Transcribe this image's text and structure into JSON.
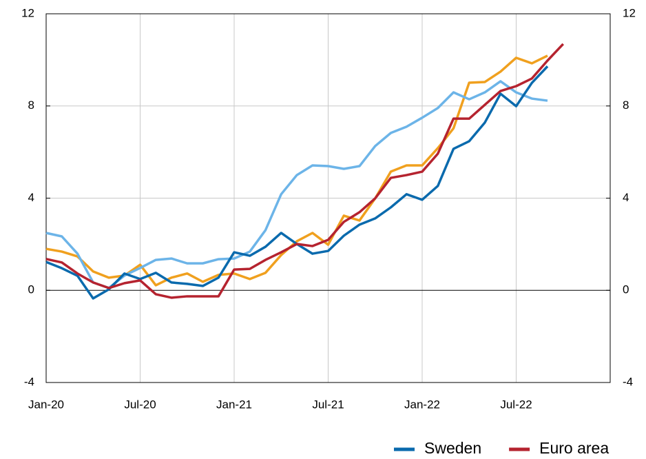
{
  "chart_data": {
    "type": "line",
    "categories": [
      "Jan-20",
      null,
      null,
      null,
      null,
      null,
      "Jul-20",
      null,
      null,
      null,
      null,
      null,
      "Jan-21",
      null,
      null,
      null,
      null,
      null,
      "Jul-21",
      null,
      null,
      null,
      null,
      null,
      "Jan-22",
      null,
      null,
      null,
      null,
      null,
      "Jul-22",
      null,
      null,
      null,
      null,
      null,
      null
    ],
    "series": [
      {
        "color": "#f0a01e",
        "values": [
          1.8,
          1.68,
          1.47,
          0.82,
          0.55,
          0.64,
          1.11,
          0.22,
          0.55,
          0.73,
          0.37,
          0.67,
          0.73,
          0.49,
          0.76,
          1.53,
          2.13,
          2.49,
          1.98,
          3.24,
          3.03,
          3.99,
          5.15,
          5.42,
          5.42,
          6.17,
          7.03,
          9.01,
          9.04,
          9.49,
          10.09,
          9.85,
          10.18,
          null,
          null,
          null,
          null
        ]
      },
      {
        "color": "#6cb4e8",
        "values": [
          2.49,
          2.34,
          1.59,
          0.34,
          0.1,
          0.64,
          0.97,
          1.32,
          1.38,
          1.17,
          1.17,
          1.35,
          1.38,
          1.68,
          2.61,
          4.17,
          5.0,
          5.42,
          5.39,
          5.27,
          5.39,
          6.26,
          6.83,
          7.1,
          7.49,
          7.91,
          8.59,
          8.29,
          8.59,
          9.07,
          8.59,
          8.32,
          8.23,
          null,
          null,
          null,
          null
        ]
      },
      {
        "name": "Sweden",
        "color": "#0a6aad",
        "values": [
          1.23,
          0.96,
          0.63,
          -0.35,
          0.04,
          0.73,
          0.49,
          0.76,
          0.34,
          0.28,
          0.19,
          0.55,
          1.65,
          1.5,
          1.89,
          2.49,
          2.01,
          1.59,
          1.71,
          2.37,
          2.85,
          3.12,
          3.6,
          4.17,
          3.93,
          4.53,
          6.14,
          6.47,
          7.28,
          8.53,
          7.99,
          9.0,
          9.72,
          null,
          null,
          null,
          null
        ]
      },
      {
        "name": "Euro area",
        "color": "#b5232f",
        "values": [
          1.36,
          1.21,
          0.73,
          0.34,
          0.1,
          0.31,
          0.43,
          -0.17,
          -0.32,
          -0.26,
          -0.26,
          -0.26,
          0.9,
          0.93,
          1.32,
          1.65,
          2.01,
          1.92,
          2.19,
          2.97,
          3.39,
          3.99,
          4.88,
          5.0,
          5.15,
          5.93,
          7.45,
          7.45,
          8.05,
          8.65,
          8.86,
          9.19,
          9.97,
          10.69,
          null,
          null,
          null
        ]
      }
    ],
    "ylim": [
      -4,
      12
    ],
    "yticks": [
      -4,
      0,
      4,
      8,
      12
    ],
    "y2lim": [
      -4,
      12
    ],
    "y2ticks": [
      -4,
      0,
      4,
      8,
      12
    ],
    "grid": true
  }
}
